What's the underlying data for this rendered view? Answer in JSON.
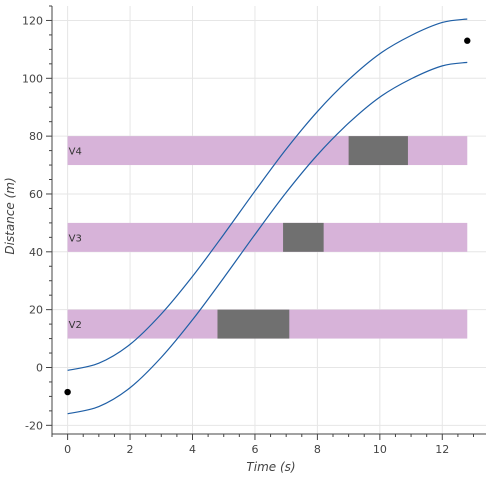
{
  "chart_data": {
    "type": "line",
    "xlabel": "Time (s)",
    "ylabel": "Distance (m)",
    "xlim": [
      -0.5,
      13.4
    ],
    "ylim": [
      -23,
      125
    ],
    "grid": true,
    "x_ticks": [
      "0",
      "2",
      "4",
      "6",
      "8",
      "10",
      "12"
    ],
    "x_tick_values": [
      0,
      2,
      4,
      6,
      8,
      10,
      12
    ],
    "y_ticks": [
      "-20",
      "0",
      "20",
      "40",
      "60",
      "80",
      "100",
      "120"
    ],
    "y_tick_values": [
      -20,
      0,
      20,
      40,
      60,
      80,
      100,
      120
    ],
    "colors": {
      "line": "#1f5fa6",
      "band": "#d7b3d9",
      "block": "#707070",
      "point": "#000000",
      "grid": "#e6e6e6"
    },
    "series": [
      {
        "x": [
          0,
          1,
          2,
          3,
          4,
          5,
          6,
          7,
          8,
          9,
          10,
          11,
          12,
          12.8
        ],
        "values": [
          -1,
          1.5,
          8,
          18.5,
          31.5,
          46,
          61,
          75.5,
          88.5,
          99.5,
          108.5,
          114.8,
          119.3,
          120.5
        ]
      },
      {
        "x": [
          0,
          1,
          2,
          3,
          4,
          5,
          6,
          7,
          8,
          9,
          10,
          11,
          12,
          12.8
        ],
        "values": [
          -16,
          -13.5,
          -7,
          3.5,
          16.5,
          31,
          46,
          60.5,
          73.5,
          84.5,
          93.5,
          99.8,
          104.3,
          105.5
        ]
      }
    ],
    "bands": [
      {
        "label": "V2",
        "x0": 0,
        "x1": 12.8,
        "y0": 10,
        "y1": 20
      },
      {
        "label": "V3",
        "x0": 0,
        "x1": 12.8,
        "y0": 40,
        "y1": 50
      },
      {
        "label": "V4",
        "x0": 0,
        "x1": 12.8,
        "y0": 70,
        "y1": 80
      }
    ],
    "blocks": [
      {
        "x0": 4.8,
        "x1": 7.1,
        "y0": 10,
        "y1": 20
      },
      {
        "x0": 6.9,
        "x1": 8.2,
        "y0": 40,
        "y1": 50
      },
      {
        "x0": 9.0,
        "x1": 10.9,
        "y0": 70,
        "y1": 80
      }
    ],
    "points": [
      {
        "x": 0,
        "y": -8.5
      },
      {
        "x": 12.8,
        "y": 113
      }
    ]
  }
}
